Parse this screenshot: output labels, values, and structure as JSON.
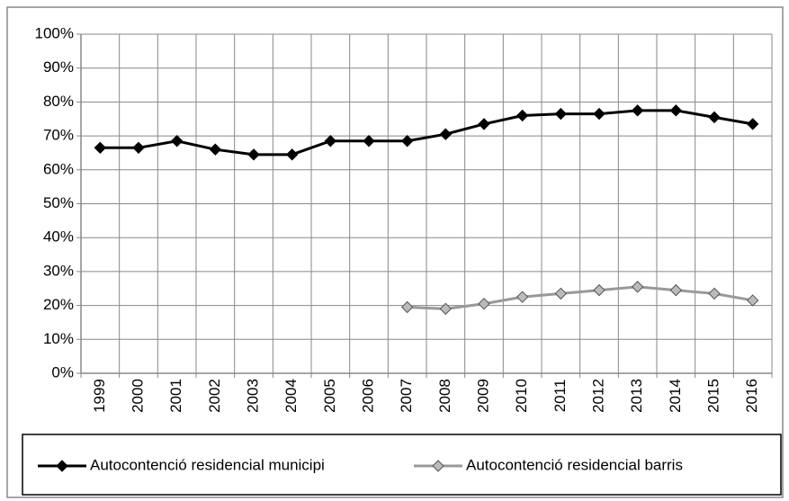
{
  "chart_data": {
    "type": "line",
    "categories": [
      "1999",
      "2000",
      "2001",
      "2002",
      "2003",
      "2004",
      "2005",
      "2006",
      "2007",
      "2008",
      "2009",
      "2010",
      "2011",
      "2012",
      "2013",
      "2014",
      "2015",
      "2016"
    ],
    "series": [
      {
        "name": "Autocontenció residencial municipi",
        "color": "#000000",
        "values": [
          66.5,
          66.5,
          68.5,
          66,
          64.5,
          64.5,
          68.5,
          68.5,
          68.5,
          70.5,
          73.5,
          76,
          76.5,
          76.5,
          77.5,
          77.5,
          75.5,
          73.5
        ]
      },
      {
        "name": "Autocontenció residencial barris",
        "color": "#999999",
        "values": [
          null,
          null,
          null,
          null,
          null,
          null,
          null,
          null,
          19.5,
          19,
          20.5,
          22.5,
          23.5,
          24.5,
          25.5,
          24.5,
          23.5,
          21.5
        ]
      }
    ],
    "ylim": [
      0,
      100
    ],
    "yticks": [
      {
        "value": 0,
        "label": "0%"
      },
      {
        "value": 10,
        "label": "10%"
      },
      {
        "value": 20,
        "label": "20%"
      },
      {
        "value": 30,
        "label": "30%"
      },
      {
        "value": 40,
        "label": "40%"
      },
      {
        "value": 50,
        "label": "50%"
      },
      {
        "value": 60,
        "label": "60%"
      },
      {
        "value": 70,
        "label": "70%"
      },
      {
        "value": 80,
        "label": "80%"
      },
      {
        "value": 90,
        "label": "90%"
      },
      {
        "value": 100,
        "label": "100%"
      }
    ],
    "grid": true,
    "legend": "bottom"
  }
}
